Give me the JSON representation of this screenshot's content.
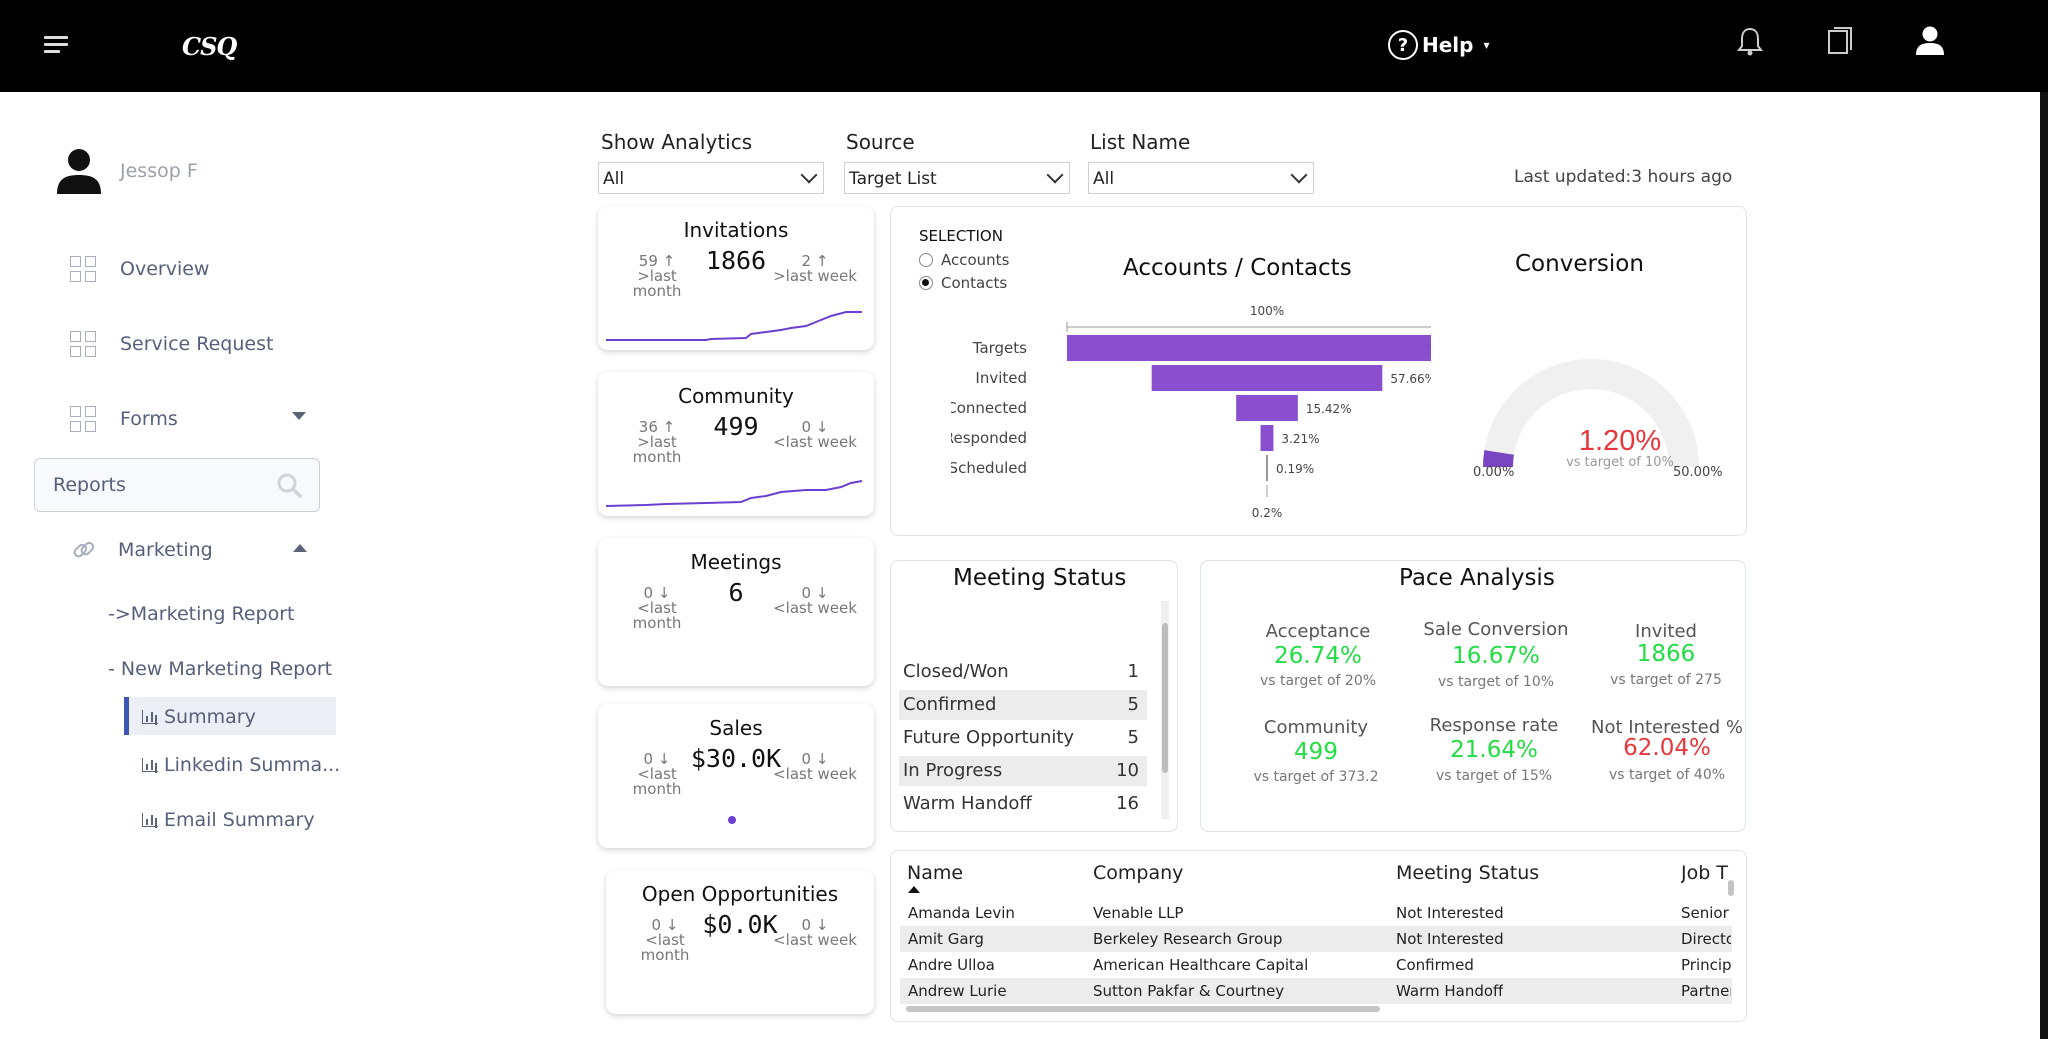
{
  "header": {
    "logo": "CSQ",
    "help_label": "Help",
    "help_caret": "▾"
  },
  "sidebar": {
    "user_name": "Jessop F",
    "items": [
      {
        "label": "Overview"
      },
      {
        "label": "Service Request"
      },
      {
        "label": "Forms"
      }
    ],
    "search_value": "Reports",
    "marketing_label": "Marketing",
    "sub_items": [
      {
        "label": "->Marketing Report"
      },
      {
        "label": "- New Marketing Report"
      }
    ],
    "reports": [
      {
        "label": "Summary"
      },
      {
        "label": "Linkedin Summa..."
      },
      {
        "label": "Email Summary"
      }
    ]
  },
  "filters": {
    "show_analytics": {
      "label": "Show Analytics",
      "value": "All"
    },
    "source": {
      "label": "Source",
      "value": "Target List"
    },
    "list_name": {
      "label": "List Name",
      "value": "All"
    },
    "last_updated": "Last updated:3 hours ago"
  },
  "kpis": [
    {
      "title": "Invitations",
      "value": "1866",
      "left_num": "59 ↑",
      "left_label": ">last month",
      "right_num": "2 ↑",
      "right_label": ">last week"
    },
    {
      "title": "Community",
      "value": "499",
      "left_num": "36 ↑",
      "left_label": ">last month",
      "right_num": "0 ↓",
      "right_label": "<last week"
    },
    {
      "title": "Meetings",
      "value": "6",
      "left_num": "0 ↓",
      "left_label": "<last month",
      "right_num": "0 ↓",
      "right_label": "<last week"
    },
    {
      "title": "Sales",
      "value": "$30.0K",
      "left_num": "0 ↓",
      "left_label": "<last month",
      "right_num": "0 ↓",
      "right_label": "<last week"
    },
    {
      "title": "Open Opportunities",
      "value": "$0.0K",
      "left_num": "0 ↓",
      "left_label": "<last month",
      "right_num": "0 ↓",
      "right_label": "<last week"
    }
  ],
  "funnel": {
    "selection_label": "SELECTION",
    "options": [
      "Accounts",
      "Contacts"
    ],
    "selected": "Contacts",
    "title": "Accounts / Contacts",
    "top_label": "100%",
    "bottom_label": "0.2%",
    "stages": [
      {
        "name": "Targets",
        "pct": 100,
        "label": "100%"
      },
      {
        "name": "Invited",
        "pct": 57.66,
        "label": "57.66%"
      },
      {
        "name": "Connected",
        "pct": 15.42,
        "label": "15.42%"
      },
      {
        "name": "Responded",
        "pct": 3.21,
        "label": "3.21%"
      },
      {
        "name": "Scheduled",
        "pct": 0.19,
        "label": "0.19%"
      }
    ],
    "bar_color": "#8a4fcf"
  },
  "conversion": {
    "title": "Conversion",
    "value": "1.20%",
    "subtitle": "vs target of 10%",
    "min_label": "0.00%",
    "max_label": "50.00%",
    "fraction": 0.024,
    "value_color": "#e8383d"
  },
  "meeting_status": {
    "title": "Meeting Status",
    "rows": [
      {
        "status": "Closed/Won",
        "count": "1"
      },
      {
        "status": "Confirmed",
        "count": "5"
      },
      {
        "status": "Future Opportunity",
        "count": "5"
      },
      {
        "status": "In Progress",
        "count": "10"
      },
      {
        "status": "Warm Handoff",
        "count": "16"
      }
    ]
  },
  "pace": {
    "title": "Pace Analysis",
    "metrics": [
      {
        "label": "Acceptance",
        "value": "26.74%",
        "sub": "vs target of 20%",
        "color": "#22dd44"
      },
      {
        "label": "Sale Conversion",
        "value": "16.67%",
        "sub": "vs target of 10%",
        "color": "#22dd44"
      },
      {
        "label": "Invited",
        "value": "1866",
        "sub": "vs target of 275",
        "color": "#22dd44"
      },
      {
        "label": "Community",
        "value": "499",
        "sub": "vs target of 373.2",
        "color": "#22dd44"
      },
      {
        "label": "Response rate",
        "value": "21.64%",
        "sub": "vs target of 15%",
        "color": "#22dd44"
      },
      {
        "label": "Not Interested %",
        "value": "62.04%",
        "sub": "vs target of 40%",
        "color": "#e8383d"
      }
    ]
  },
  "contacts_table": {
    "columns": [
      "Name",
      "Company",
      "Meeting Status",
      "Job T"
    ],
    "rows": [
      [
        "Amanda Levin",
        "Venable LLP",
        "Not Interested",
        "Senior"
      ],
      [
        "Amit Garg",
        "Berkeley Research Group",
        "Not Interested",
        "Directo"
      ],
      [
        "Andre Ulloa",
        "American Healthcare Capital",
        "Confirmed",
        "Princip"
      ],
      [
        "Andrew Lurie",
        "Sutton Pakfar & Courtney",
        "Warm Handoff",
        "Partner"
      ]
    ]
  }
}
